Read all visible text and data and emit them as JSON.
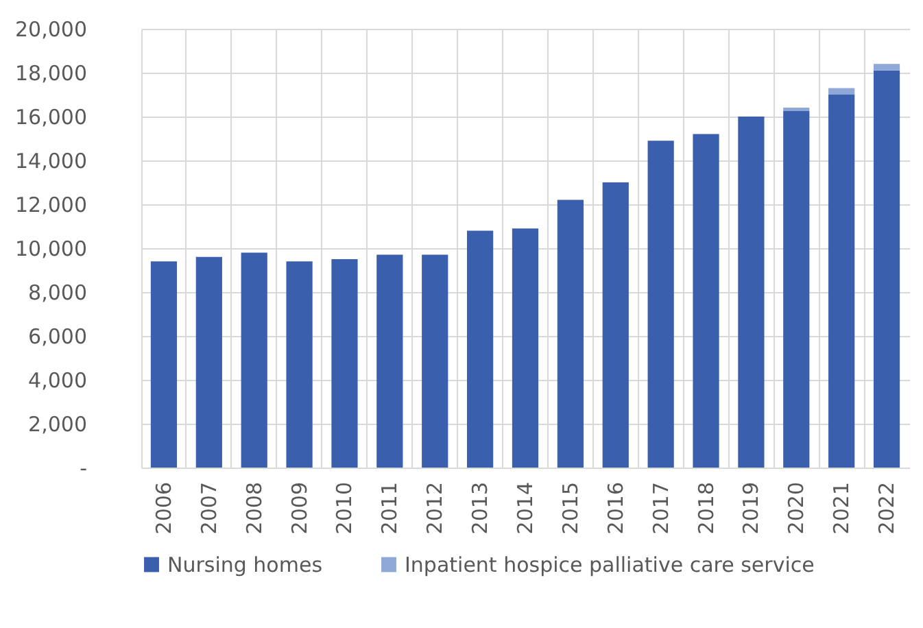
{
  "chart_data": {
    "type": "bar",
    "stacked": true,
    "categories": [
      "2006",
      "2007",
      "2008",
      "2009",
      "2010",
      "2011",
      "2012",
      "2013",
      "2014",
      "2015",
      "2016",
      "2017",
      "2018",
      "2019",
      "2020",
      "2021",
      "2022"
    ],
    "series": [
      {
        "name": "Nursing homes",
        "color": "#3a5fad",
        "values": [
          9400,
          9600,
          9800,
          9400,
          9500,
          9700,
          9700,
          10800,
          10900,
          12200,
          13000,
          14900,
          15200,
          16000,
          16250,
          17000,
          18100
        ]
      },
      {
        "name": "Inpatient hospice palliative care service",
        "color": "#8fa8d8",
        "values": [
          0,
          0,
          0,
          0,
          0,
          0,
          0,
          0,
          0,
          0,
          0,
          0,
          0,
          0,
          160,
          300,
          300
        ]
      }
    ],
    "ylim": [
      0,
      20000
    ],
    "yticks": [
      {
        "value": 0,
        "label": "-"
      },
      {
        "value": 2000,
        "label": "2,000"
      },
      {
        "value": 4000,
        "label": "4,000"
      },
      {
        "value": 6000,
        "label": "6,000"
      },
      {
        "value": 8000,
        "label": "8,000"
      },
      {
        "value": 10000,
        "label": "10,000"
      },
      {
        "value": 12000,
        "label": "12,000"
      },
      {
        "value": 14000,
        "label": "14,000"
      },
      {
        "value": 16000,
        "label": "16,000"
      },
      {
        "value": 18000,
        "label": "18,000"
      },
      {
        "value": 20000,
        "label": "20,000"
      }
    ],
    "grid": true,
    "legend": "bottom"
  }
}
